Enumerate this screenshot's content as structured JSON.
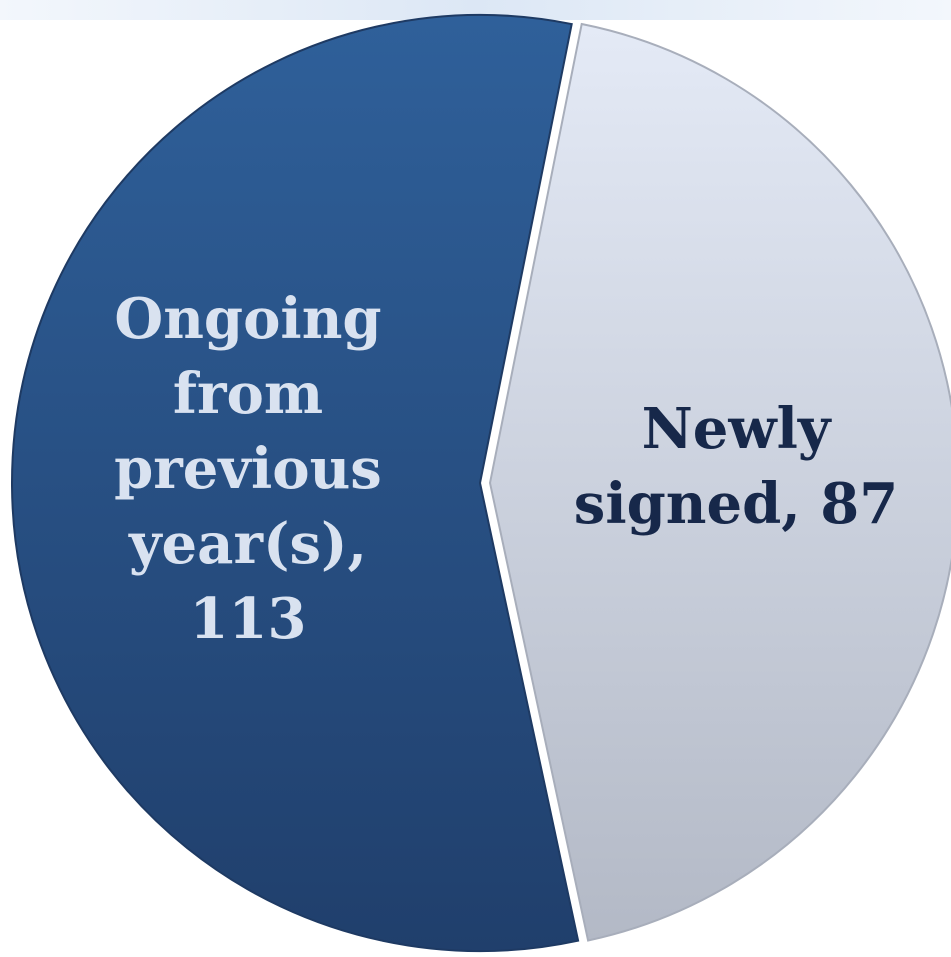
{
  "chart_data": {
    "type": "pie",
    "slices": [
      {
        "label_lines": [
          "Ongoing",
          "from",
          "previous",
          "year(s),",
          "113"
        ],
        "name": "Ongoing from previous year(s)",
        "value": 113,
        "color": "#2B5A8F",
        "label_color": "#D9E2F0"
      },
      {
        "label_lines": [
          "Newly",
          "signed, 87"
        ],
        "name": "Newly signed",
        "value": 87,
        "color": "#D7DEEC",
        "label_color": "#17284A"
      }
    ],
    "exploded_slice": "Newly signed",
    "legend": "none"
  }
}
